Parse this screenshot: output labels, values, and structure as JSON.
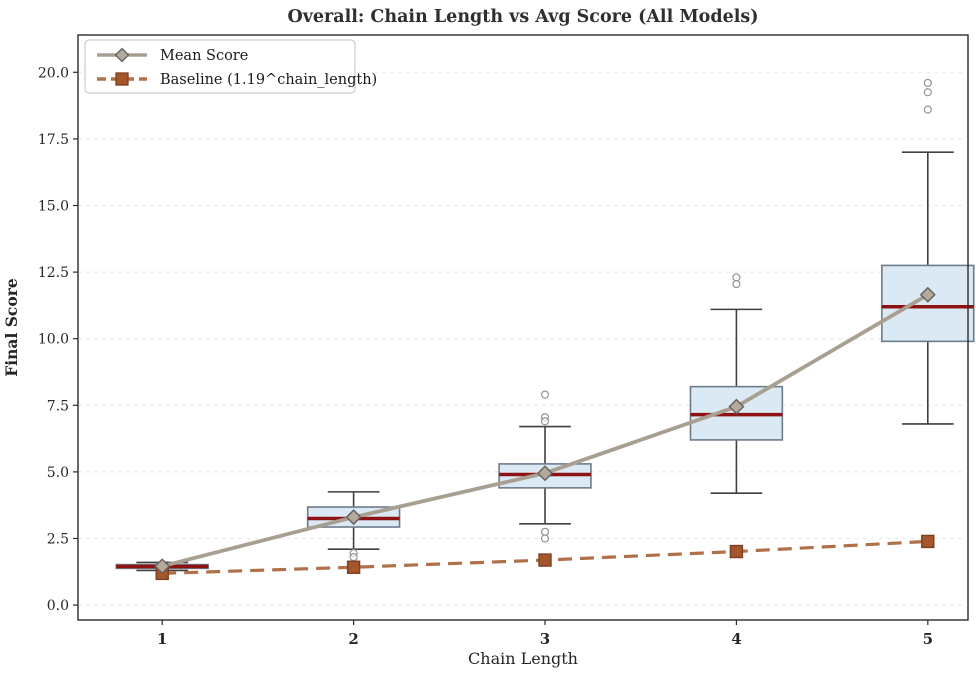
{
  "chart_data": {
    "type": "box",
    "title": "Overall: Chain Length vs Avg Score (All Models)",
    "xlabel": "Chain Length",
    "ylabel": "Final Score",
    "categories": [
      "1",
      "2",
      "3",
      "4",
      "5"
    ],
    "category_positions": [
      1,
      2,
      3,
      4,
      5
    ],
    "xlim": [
      0.56,
      5.21
    ],
    "ylim": [
      -0.56,
      21.4
    ],
    "yticks": [
      0.0,
      2.5,
      5.0,
      7.5,
      10.0,
      12.5,
      15.0,
      17.5,
      20.0
    ],
    "grid": "horizontal-dashed",
    "legend_position": "upper-left",
    "legend": [
      {
        "label": "Mean Score",
        "marker": "diamond",
        "dashed": false
      },
      {
        "label": "Baseline (1.19^chain_length)",
        "marker": "square",
        "dashed": true
      }
    ],
    "boxes": [
      {
        "category": "1",
        "whislo": 1.3,
        "q1": 1.38,
        "med": 1.45,
        "q3": 1.52,
        "whishi": 1.6,
        "mean": 1.46,
        "outliers": []
      },
      {
        "category": "2",
        "whislo": 2.1,
        "q1": 2.93,
        "med": 3.25,
        "q3": 3.68,
        "whishi": 4.25,
        "mean": 3.3,
        "outliers": [
          1.95,
          1.8
        ]
      },
      {
        "category": "3",
        "whislo": 3.05,
        "q1": 4.4,
        "med": 4.9,
        "q3": 5.3,
        "whishi": 6.7,
        "mean": 4.95,
        "outliers": [
          7.9,
          7.05,
          6.9,
          2.75,
          2.5
        ]
      },
      {
        "category": "4",
        "whislo": 4.2,
        "q1": 6.2,
        "med": 7.15,
        "q3": 8.2,
        "whishi": 11.1,
        "mean": 7.45,
        "outliers": [
          12.3,
          12.05
        ]
      },
      {
        "category": "5",
        "whislo": 6.8,
        "q1": 9.9,
        "med": 11.2,
        "q3": 12.75,
        "whishi": 17.0,
        "mean": 11.65,
        "outliers": [
          19.6,
          19.25,
          18.6
        ]
      }
    ],
    "series": [
      {
        "name": "Mean Score",
        "x": [
          1,
          2,
          3,
          4,
          5
        ],
        "values": [
          1.46,
          3.3,
          4.95,
          7.45,
          11.65
        ]
      },
      {
        "name": "Baseline (1.19^chain_length)",
        "x": [
          1,
          2,
          3,
          4,
          5
        ],
        "values": [
          1.19,
          1.42,
          1.69,
          2.01,
          2.39
        ]
      }
    ],
    "colors": {
      "box_fill": "#dbe9f4",
      "box_edge": "#6e7b8a",
      "whisker": "#3f3f3f",
      "median": "#8e1212",
      "mean_line": "#a89f91",
      "mean_marker_fill": "#b3a99c",
      "mean_marker_edge": "#63605a",
      "baseline_line": "#b0714a",
      "baseline_marker_fill": "#a5562c",
      "baseline_marker_edge": "#7d3f1f",
      "grid": "#e4e4e4",
      "spine": "#2b2b2b",
      "outlier_edge": "#949494",
      "text": "#262626"
    },
    "box_width": 0.48,
    "cap_width": 0.27
  }
}
